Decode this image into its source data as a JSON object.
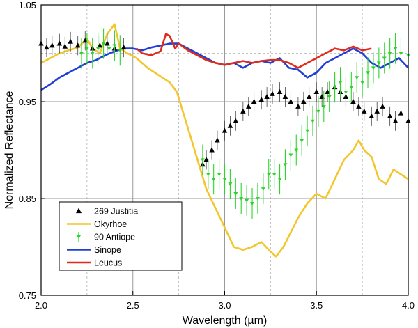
{
  "chart_data": {
    "type": "line",
    "title": "",
    "xlabel": "Wavelength (µm)",
    "ylabel": "Normalized Reflectance",
    "xlim": [
      2.0,
      4.0
    ],
    "ylim": [
      0.75,
      1.05
    ],
    "x_ticks": [
      2.0,
      2.5,
      3.0,
      3.5,
      4.0
    ],
    "x_tick_labels": [
      "2.0",
      "2.5",
      "3.0",
      "3.5",
      "4.0"
    ],
    "y_ticks": [
      0.75,
      0.85,
      0.95,
      1.05
    ],
    "y_tick_labels": [
      "0.75",
      "0.85",
      "0.95",
      "1.05"
    ],
    "grid": true,
    "legend_position": "bottom-left",
    "colors": {
      "justitia": "#000000",
      "okyrhoe": "#f2c62c",
      "antiope": "#2bd62b",
      "sinope": "#1f3fd6",
      "leucus": "#e12a1a"
    },
    "series": [
      {
        "name": "Sinope",
        "style": "line",
        "color": "#1f3fd6",
        "points": [
          [
            2.0,
            0.962
          ],
          [
            2.05,
            0.968
          ],
          [
            2.1,
            0.975
          ],
          [
            2.15,
            0.98
          ],
          [
            2.2,
            0.985
          ],
          [
            2.25,
            0.99
          ],
          [
            2.3,
            0.993
          ],
          [
            2.35,
            0.998
          ],
          [
            2.4,
            1.002
          ],
          [
            2.45,
            1.005
          ],
          [
            2.5,
            1.005
          ],
          [
            2.55,
            1.003
          ],
          [
            2.6,
            1.006
          ],
          [
            2.65,
            1.008
          ],
          [
            2.7,
            1.01
          ],
          [
            2.75,
            1.01
          ],
          [
            2.8,
            1.005
          ],
          [
            2.85,
            1.0
          ],
          [
            2.9,
            0.995
          ],
          [
            2.95,
            0.99
          ],
          [
            3.0,
            0.988
          ],
          [
            3.05,
            0.99
          ],
          [
            3.1,
            0.985
          ],
          [
            3.15,
            0.99
          ],
          [
            3.2,
            0.992
          ],
          [
            3.25,
            0.99
          ],
          [
            3.3,
            0.995
          ],
          [
            3.35,
            0.985
          ],
          [
            3.4,
            0.983
          ],
          [
            3.45,
            0.975
          ],
          [
            3.5,
            0.98
          ],
          [
            3.55,
            0.99
          ],
          [
            3.6,
            0.995
          ],
          [
            3.65,
            1.0
          ],
          [
            3.7,
            1.005
          ],
          [
            3.75,
            1.0
          ],
          [
            3.8,
            0.99
          ],
          [
            3.85,
            0.985
          ],
          [
            3.9,
            0.99
          ],
          [
            3.95,
            0.995
          ],
          [
            4.0,
            0.985
          ]
        ]
      },
      {
        "name": "Leucus",
        "style": "line",
        "color": "#e12a1a",
        "points": [
          [
            2.52,
            1.005
          ],
          [
            2.55,
            1.0
          ],
          [
            2.6,
            0.998
          ],
          [
            2.65,
            1.002
          ],
          [
            2.68,
            1.02
          ],
          [
            2.7,
            1.018
          ],
          [
            2.73,
            1.005
          ],
          [
            2.75,
            1.01
          ],
          [
            2.8,
            1.003
          ],
          [
            2.85,
            0.998
          ],
          [
            2.9,
            0.993
          ],
          [
            2.95,
            0.99
          ],
          [
            3.0,
            0.988
          ],
          [
            3.05,
            0.99
          ],
          [
            3.1,
            0.992
          ],
          [
            3.15,
            0.99
          ],
          [
            3.2,
            0.992
          ],
          [
            3.25,
            0.993
          ],
          [
            3.3,
            0.993
          ],
          [
            3.35,
            0.99
          ],
          [
            3.4,
            0.985
          ],
          [
            3.45,
            0.99
          ],
          [
            3.5,
            0.995
          ],
          [
            3.55,
            1.0
          ],
          [
            3.6,
            1.005
          ],
          [
            3.65,
            1.003
          ],
          [
            3.7,
            1.007
          ],
          [
            3.75,
            1.003
          ],
          [
            3.8,
            1.005
          ]
        ]
      },
      {
        "name": "Okyrhoe",
        "style": "line",
        "color": "#f2c62c",
        "points": [
          [
            2.0,
            0.99
          ],
          [
            2.05,
            0.995
          ],
          [
            2.1,
            1.0
          ],
          [
            2.15,
            1.003
          ],
          [
            2.2,
            1.006
          ],
          [
            2.25,
            1.015
          ],
          [
            2.28,
            1.005
          ],
          [
            2.32,
            1.0
          ],
          [
            2.36,
            1.02
          ],
          [
            2.4,
            1.03
          ],
          [
            2.43,
            1.005
          ],
          [
            2.47,
            1.0
          ],
          [
            2.52,
            0.995
          ],
          [
            2.58,
            0.985
          ],
          [
            2.62,
            0.98
          ],
          [
            2.66,
            0.975
          ],
          [
            2.7,
            0.97
          ],
          [
            2.74,
            0.96
          ],
          [
            2.78,
            0.935
          ],
          [
            2.82,
            0.91
          ],
          [
            2.86,
            0.885
          ],
          [
            2.9,
            0.86
          ],
          [
            2.95,
            0.84
          ],
          [
            3.0,
            0.82
          ],
          [
            3.05,
            0.8
          ],
          [
            3.1,
            0.797
          ],
          [
            3.15,
            0.8
          ],
          [
            3.2,
            0.805
          ],
          [
            3.25,
            0.795
          ],
          [
            3.28,
            0.79
          ],
          [
            3.32,
            0.8
          ],
          [
            3.36,
            0.815
          ],
          [
            3.4,
            0.83
          ],
          [
            3.45,
            0.845
          ],
          [
            3.5,
            0.855
          ],
          [
            3.55,
            0.85
          ],
          [
            3.6,
            0.87
          ],
          [
            3.65,
            0.89
          ],
          [
            3.7,
            0.9
          ],
          [
            3.73,
            0.91
          ],
          [
            3.76,
            0.9
          ],
          [
            3.8,
            0.893
          ],
          [
            3.84,
            0.87
          ],
          [
            3.88,
            0.865
          ],
          [
            3.92,
            0.88
          ],
          [
            3.96,
            0.875
          ],
          [
            4.0,
            0.87
          ]
        ]
      },
      {
        "name": "269 Justitia",
        "style": "marker-triangle",
        "color": "#000000",
        "points": [
          [
            2.0,
            1.01
          ],
          [
            2.03,
            1.006
          ],
          [
            2.06,
            1.008
          ],
          [
            2.1,
            1.01
          ],
          [
            2.13,
            1.007
          ],
          [
            2.16,
            1.012
          ],
          [
            2.2,
            1.008
          ],
          [
            2.24,
            1.013
          ],
          [
            2.28,
            1.005
          ],
          [
            2.32,
            1.008
          ],
          [
            2.36,
            1.01
          ],
          [
            2.4,
            1.005
          ],
          [
            2.45,
            1.006
          ],
          [
            2.88,
            0.885
          ],
          [
            2.9,
            0.89
          ],
          [
            2.93,
            0.9
          ],
          [
            2.96,
            0.91
          ],
          [
            3.0,
            0.92
          ],
          [
            3.03,
            0.925
          ],
          [
            3.06,
            0.93
          ],
          [
            3.1,
            0.94
          ],
          [
            3.13,
            0.945
          ],
          [
            3.16,
            0.95
          ],
          [
            3.2,
            0.952
          ],
          [
            3.23,
            0.955
          ],
          [
            3.26,
            0.958
          ],
          [
            3.3,
            0.96
          ],
          [
            3.33,
            0.955
          ],
          [
            3.36,
            0.95
          ],
          [
            3.4,
            0.945
          ],
          [
            3.43,
            0.95
          ],
          [
            3.46,
            0.955
          ],
          [
            3.5,
            0.96
          ],
          [
            3.53,
            0.955
          ],
          [
            3.56,
            0.96
          ],
          [
            3.6,
            0.965
          ],
          [
            3.63,
            0.96
          ],
          [
            3.66,
            0.955
          ],
          [
            3.7,
            0.95
          ],
          [
            3.73,
            0.945
          ],
          [
            3.76,
            0.94
          ],
          [
            3.8,
            0.935
          ],
          [
            3.83,
            0.94
          ],
          [
            3.86,
            0.945
          ],
          [
            3.9,
            0.935
          ],
          [
            3.93,
            0.93
          ],
          [
            3.96,
            0.938
          ],
          [
            4.0,
            0.93
          ]
        ]
      },
      {
        "name": "90 Antiope",
        "style": "marker-errorbar",
        "color": "#2bd62b",
        "points": [
          [
            2.22,
            1.0
          ],
          [
            2.25,
            1.005
          ],
          [
            2.28,
            1.0
          ],
          [
            2.31,
            1.005
          ],
          [
            2.34,
            1.01
          ],
          [
            2.37,
            1.005
          ],
          [
            2.4,
            1.008
          ],
          [
            2.43,
            1.003
          ],
          [
            2.88,
            0.89
          ],
          [
            2.91,
            0.875
          ],
          [
            2.94,
            0.87
          ],
          [
            2.97,
            0.875
          ],
          [
            3.0,
            0.87
          ],
          [
            3.03,
            0.865
          ],
          [
            3.06,
            0.855
          ],
          [
            3.09,
            0.85
          ],
          [
            3.12,
            0.848
          ],
          [
            3.15,
            0.845
          ],
          [
            3.18,
            0.85
          ],
          [
            3.21,
            0.86
          ],
          [
            3.24,
            0.875
          ],
          [
            3.27,
            0.875
          ],
          [
            3.3,
            0.87
          ],
          [
            3.33,
            0.885
          ],
          [
            3.36,
            0.895
          ],
          [
            3.39,
            0.9
          ],
          [
            3.42,
            0.91
          ],
          [
            3.45,
            0.92
          ],
          [
            3.48,
            0.93
          ],
          [
            3.51,
            0.94
          ],
          [
            3.54,
            0.945
          ],
          [
            3.57,
            0.955
          ],
          [
            3.6,
            0.965
          ],
          [
            3.63,
            0.97
          ],
          [
            3.66,
            0.96
          ],
          [
            3.69,
            0.965
          ],
          [
            3.72,
            0.975
          ],
          [
            3.75,
            0.97
          ],
          [
            3.78,
            0.98
          ],
          [
            3.81,
            0.985
          ],
          [
            3.84,
            0.99
          ],
          [
            3.87,
            0.995
          ],
          [
            3.9,
            1.0
          ],
          [
            3.93,
            1.005
          ],
          [
            3.96,
            1.0
          ],
          [
            4.0,
            0.998
          ]
        ]
      }
    ],
    "legend": [
      {
        "label": "269 Justitia",
        "marker": "triangle",
        "color": "#000000"
      },
      {
        "label": "Okyrhoe",
        "marker": "line",
        "color": "#f2c62c"
      },
      {
        "label": "90 Antiope",
        "marker": "errorbar",
        "color": "#2bd62b"
      },
      {
        "label": "Sinope",
        "marker": "line",
        "color": "#1f3fd6"
      },
      {
        "label": "Leucus",
        "marker": "line",
        "color": "#e12a1a"
      }
    ]
  }
}
